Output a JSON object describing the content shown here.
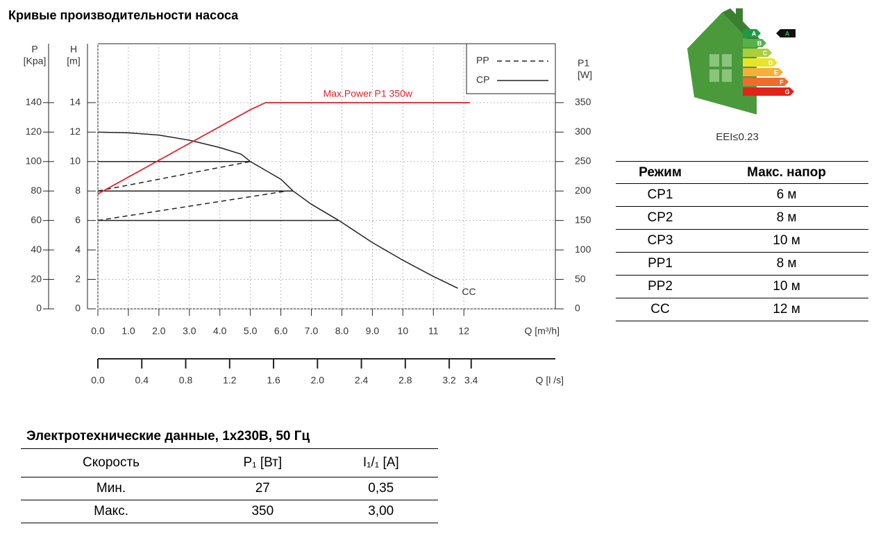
{
  "chart_data": {
    "type": "line",
    "title": "Кривые производительности насоса",
    "x_label": "Q [m³/h]",
    "x2_label": "Q [l /s]",
    "y_label": [
      "H",
      "[m]"
    ],
    "p_label": [
      "P",
      "[Kpa]"
    ],
    "y2_label": [
      "P1",
      "[W]"
    ],
    "xlim": [
      0,
      15
    ],
    "xticks": [
      {
        "value": 0,
        "label": "0.0"
      },
      {
        "value": 1,
        "label": "1.0"
      },
      {
        "value": 2,
        "label": "2.0"
      },
      {
        "value": 3,
        "label": "3.0"
      },
      {
        "value": 4,
        "label": "4.0"
      },
      {
        "value": 5,
        "label": "5.0"
      },
      {
        "value": 6,
        "label": "6.0"
      },
      {
        "value": 7,
        "label": "7.0"
      },
      {
        "value": 8,
        "label": "8.0"
      },
      {
        "value": 9,
        "label": "9.0"
      },
      10,
      11,
      12
    ],
    "x2lim": [
      0,
      4.1667
    ],
    "x2ticks": [
      {
        "value": 0,
        "label": "0.0"
      },
      0.4,
      0.8,
      1.2,
      1.6,
      {
        "value": 2,
        "label": "2.0"
      },
      2.4,
      2.8,
      3.2,
      3.4
    ],
    "ylim": [
      0,
      18
    ],
    "yticks": [
      0,
      2,
      4,
      6,
      8,
      10,
      12,
      14
    ],
    "plim": [
      0,
      180
    ],
    "pticks": [
      0,
      20,
      40,
      60,
      80,
      100,
      120,
      140
    ],
    "y2lim": [
      0,
      450
    ],
    "y2ticks": [
      0,
      50,
      100,
      150,
      200,
      250,
      300,
      350
    ],
    "grid": true,
    "series": [
      {
        "name": "PP",
        "color": "#222222",
        "dash": true,
        "lines": [
          {
            "x": [
              0,
              5.0
            ],
            "values": [
              8,
              10
            ]
          },
          {
            "x": [
              0,
              6.2
            ],
            "values": [
              6,
              8
            ]
          }
        ]
      },
      {
        "name": "CP",
        "color": "#222222",
        "dash": false,
        "lines": [
          {
            "x": [
              0,
              5.0
            ],
            "values": [
              10,
              10
            ]
          },
          {
            "x": [
              0,
              6.4
            ],
            "values": [
              8,
              8
            ]
          },
          {
            "x": [
              0,
              7.9
            ],
            "values": [
              6,
              6
            ]
          }
        ]
      },
      {
        "name": "CC",
        "color": "#222222",
        "x": [
          0,
          1,
          2,
          3,
          4,
          4.7,
          5,
          6,
          6.4,
          7,
          7.9,
          9,
          10,
          11,
          11.8
        ],
        "values": [
          12,
          11.95,
          11.8,
          11.45,
          10.95,
          10.5,
          10,
          8.8,
          8,
          7.1,
          6,
          4.5,
          3.3,
          2.2,
          1.4
        ]
      },
      {
        "name": "Max.Power P1 350w",
        "color": "#e8202a",
        "axis": "y2",
        "x": [
          0,
          5.0,
          5.5,
          12.2
        ],
        "values": [
          195,
          338,
          350,
          350
        ]
      }
    ]
  },
  "energy_label": {
    "classes": [
      "A",
      "B",
      "C",
      "D",
      "E",
      "F",
      "G"
    ],
    "colors": [
      "#1e9a46",
      "#55b04a",
      "#a9cf3b",
      "#e8e42a",
      "#f6b03a",
      "#ef6c2c",
      "#e2231a"
    ],
    "rating": "A",
    "eei": "EEI≤0.23"
  },
  "mode_table": {
    "header": [
      "Режим",
      "Макс. напор"
    ],
    "rows": [
      [
        "CP1",
        "6 м"
      ],
      [
        "CP2",
        "8 м"
      ],
      [
        "CP3",
        "10 м"
      ],
      [
        "PP1",
        "8 м"
      ],
      [
        "PP2",
        "10 м"
      ],
      [
        "CC",
        "12 м"
      ]
    ]
  },
  "electric_table": {
    "title": "Электротехнические данные, 1x230В, 50 Гц",
    "header": [
      "Скорость",
      "P₁ [Вт]",
      "I₁/₁ [A]"
    ],
    "rows": [
      [
        "Мин.",
        "27",
        "0,35"
      ],
      [
        "Макс.",
        "350",
        "3,00"
      ]
    ]
  }
}
